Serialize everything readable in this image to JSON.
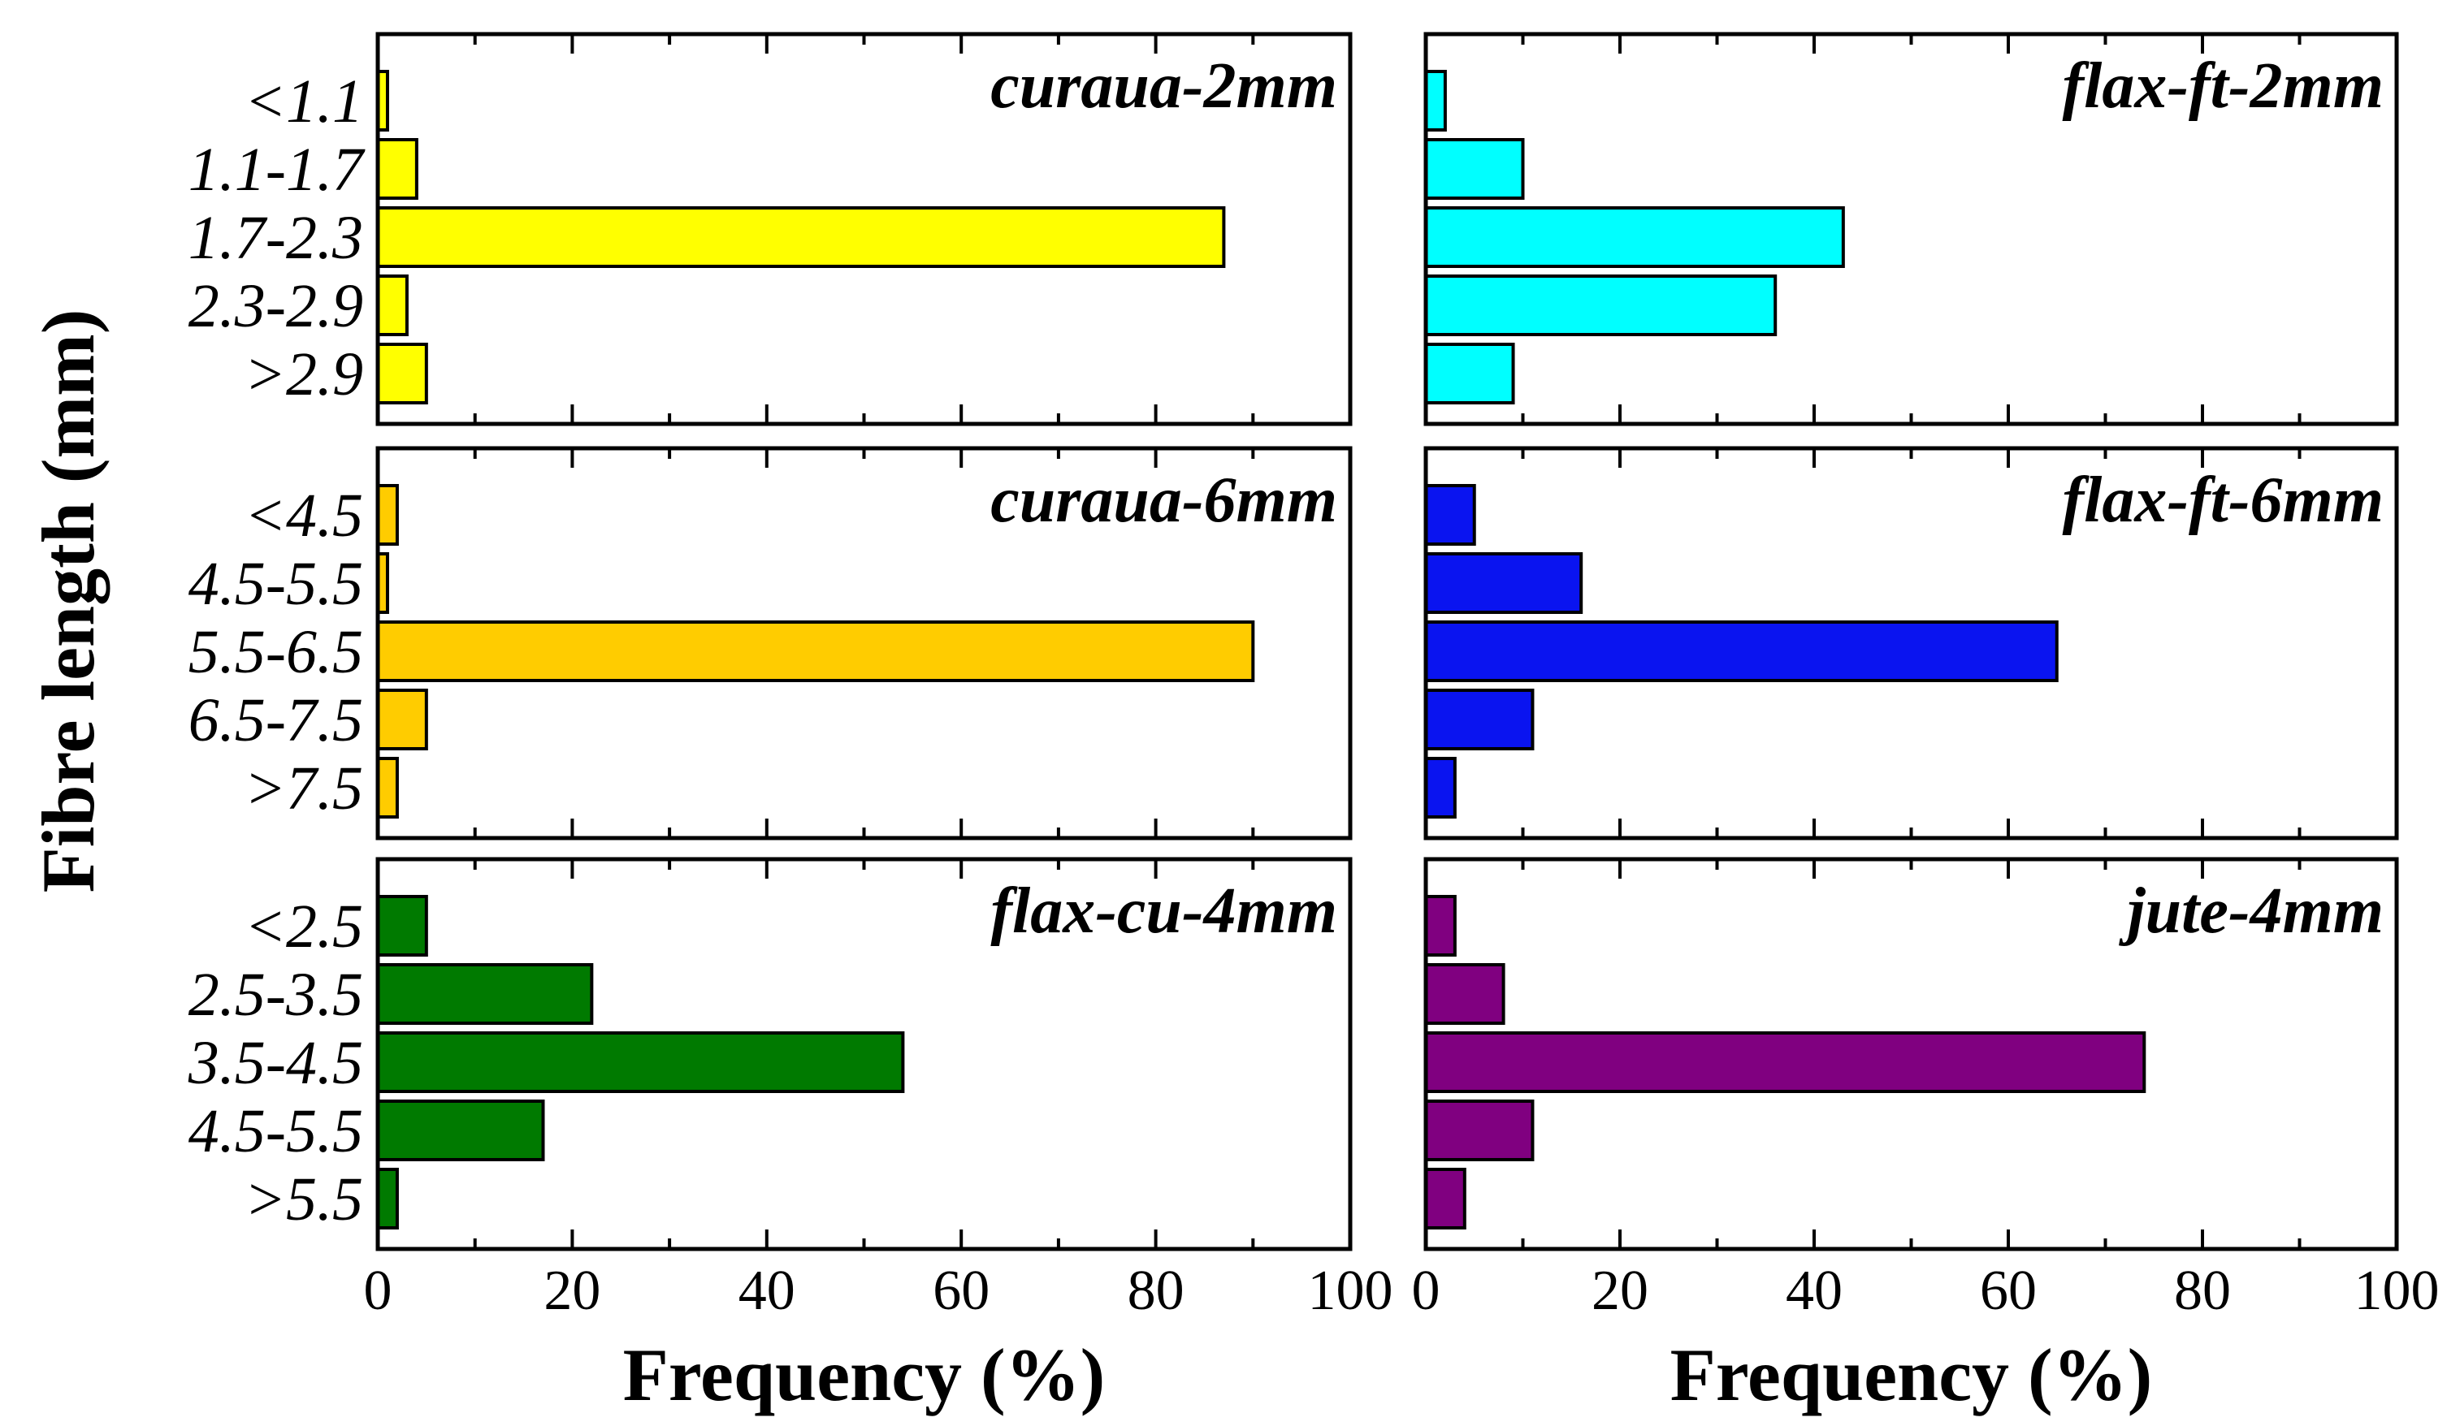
{
  "chart_data": [
    {
      "type": "bar",
      "orientation": "horizontal",
      "title": "curaua-2mm",
      "categories": [
        "<1.1",
        "1.1-1.7",
        "1.7-2.3",
        "2.3-2.9",
        ">2.9"
      ],
      "values": [
        1,
        4,
        87,
        3,
        5
      ],
      "color": "#FFFF00",
      "xlim": [
        0,
        100
      ],
      "ylabel": "Fibre length (mm)",
      "xlabel": ""
    },
    {
      "type": "bar",
      "orientation": "horizontal",
      "title": "flax-ft-2mm",
      "categories": [
        "",
        "",
        "",
        "",
        ""
      ],
      "values": [
        2,
        10,
        43,
        36,
        9
      ],
      "color": "#00FFFF",
      "xlim": [
        0,
        100
      ],
      "xlabel": ""
    },
    {
      "type": "bar",
      "orientation": "horizontal",
      "title": "curaua-6mm",
      "categories": [
        "<4.5",
        "4.5-5.5",
        "5.5-6.5",
        "6.5-7.5",
        ">7.5"
      ],
      "values": [
        2,
        1,
        90,
        5,
        2
      ],
      "color": "#FFCC00",
      "xlim": [
        0,
        100
      ],
      "xlabel": ""
    },
    {
      "type": "bar",
      "orientation": "horizontal",
      "title": "flax-ft-6mm",
      "categories": [
        "",
        "",
        "",
        "",
        ""
      ],
      "values": [
        5,
        16,
        65,
        11,
        3
      ],
      "color": "#0A14F0",
      "xlim": [
        0,
        100
      ],
      "xlabel": ""
    },
    {
      "type": "bar",
      "orientation": "horizontal",
      "title": "flax-cu-4mm",
      "categories": [
        "<2.5",
        "2.5-3.5",
        "3.5-4.5",
        "4.5-5.5",
        ">5.5"
      ],
      "values": [
        5,
        22,
        54,
        17,
        2
      ],
      "color": "#007A00",
      "xlim": [
        0,
        100
      ],
      "xticks": [
        "0",
        "20",
        "40",
        "60",
        "80",
        "100"
      ],
      "xlabel": "Frequency (%)"
    },
    {
      "type": "bar",
      "orientation": "horizontal",
      "title": "jute-4mm",
      "categories": [
        "",
        "",
        "",
        "",
        ""
      ],
      "values": [
        3,
        8,
        74,
        11,
        4
      ],
      "color": "#800080",
      "xlim": [
        0,
        100
      ],
      "xticks": [
        "0",
        "20",
        "40",
        "60",
        "80",
        "100"
      ],
      "xlabel": "Frequency (%)"
    }
  ],
  "shared": {
    "ylabel": "Fibre length (mm)"
  }
}
